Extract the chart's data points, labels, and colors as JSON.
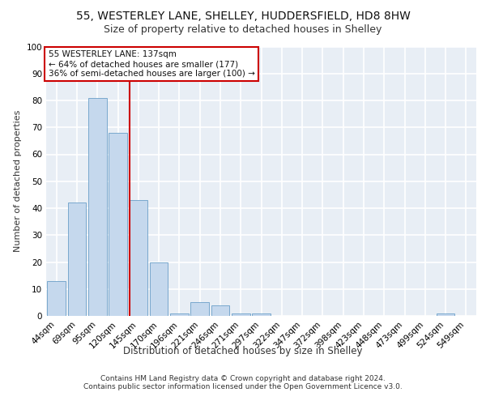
{
  "title1": "55, WESTERLEY LANE, SHELLEY, HUDDERSFIELD, HD8 8HW",
  "title2": "Size of property relative to detached houses in Shelley",
  "xlabel": "Distribution of detached houses by size in Shelley",
  "ylabel": "Number of detached properties",
  "categories": [
    "44sqm",
    "69sqm",
    "95sqm",
    "120sqm",
    "145sqm",
    "170sqm",
    "196sqm",
    "221sqm",
    "246sqm",
    "271sqm",
    "297sqm",
    "322sqm",
    "347sqm",
    "372sqm",
    "398sqm",
    "423sqm",
    "448sqm",
    "473sqm",
    "499sqm",
    "524sqm",
    "549sqm"
  ],
  "values": [
    13,
    42,
    81,
    68,
    43,
    20,
    1,
    5,
    4,
    1,
    1,
    0,
    0,
    0,
    0,
    0,
    0,
    0,
    0,
    1,
    0
  ],
  "bar_color": "#c5d8ed",
  "bar_edge_color": "#6a9fc8",
  "property_line_color": "#cc0000",
  "annotation_text": "55 WESTERLEY LANE: 137sqm\n← 64% of detached houses are smaller (177)\n36% of semi-detached houses are larger (100) →",
  "annotation_box_color": "#cc0000",
  "ylim": [
    0,
    100
  ],
  "yticks": [
    0,
    10,
    20,
    30,
    40,
    50,
    60,
    70,
    80,
    90,
    100
  ],
  "footer_text": "Contains HM Land Registry data © Crown copyright and database right 2024.\nContains public sector information licensed under the Open Government Licence v3.0.",
  "background_color": "#e8eef5",
  "grid_color": "#ffffff",
  "title1_fontsize": 10,
  "title2_fontsize": 9,
  "xlabel_fontsize": 8.5,
  "ylabel_fontsize": 8,
  "tick_fontsize": 7.5,
  "annotation_fontsize": 7.5,
  "footer_fontsize": 6.5
}
